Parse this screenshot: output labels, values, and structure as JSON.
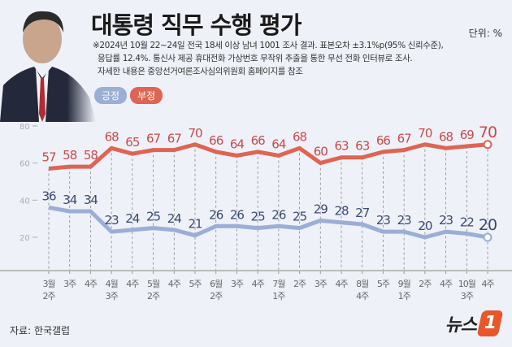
{
  "title": "대통령 직무 수행 평가",
  "unit": "단위: %",
  "notes": [
    "※2024년 10월 22~24일 전국 18세 이상 남녀 1001 조사 결과. 표본오차 ±3.1%p(95% 신뢰수준),",
    "응답률 12.4%. 통신사 제공 휴대전화 가상번호 무작위 추출을 통한 무선 전화 인터뷰로 조사.",
    "자세한 내용은 중앙선거여론조사심의위원회 홈페이지를 참조"
  ],
  "source": "자료: 한국갤럽",
  "logo": {
    "text": "뉴스",
    "mark": "1"
  },
  "colors": {
    "positive": "#9aaed6",
    "negative": "#de6553",
    "positive_label": "#3a4a6e",
    "negative_label": "#c84a4a"
  },
  "chart_data": {
    "type": "line",
    "title": "대통령 직무 수행 평가",
    "ylim": [
      10,
      85
    ],
    "yticks": [
      20,
      40,
      60,
      80
    ],
    "grid": false,
    "legend_position": "top-left",
    "categories": [
      [
        "3월",
        "2주"
      ],
      [
        "3주"
      ],
      [
        "4주"
      ],
      [
        "4월",
        "3주"
      ],
      [
        "4주"
      ],
      [
        "5월",
        "2주"
      ],
      [
        "4주"
      ],
      [
        "5주"
      ],
      [
        "6월",
        "2주"
      ],
      [
        "3주"
      ],
      [
        "4주"
      ],
      [
        "7월",
        "1주"
      ],
      [
        "2주"
      ],
      [
        "3주"
      ],
      [
        "4주"
      ],
      [
        "8월",
        "4주"
      ],
      [
        "5주"
      ],
      [
        "9월",
        "1주"
      ],
      [
        "2주"
      ],
      [
        "4주"
      ],
      [
        "10월",
        "3주"
      ],
      [
        "4주"
      ]
    ],
    "series": [
      {
        "name": "긍정",
        "values": [
          36,
          34,
          34,
          23,
          24,
          25,
          24,
          21,
          26,
          26,
          25,
          26,
          25,
          29,
          28,
          27,
          23,
          23,
          20,
          23,
          22,
          20
        ]
      },
      {
        "name": "부정",
        "values": [
          57,
          58,
          58,
          68,
          65,
          67,
          67,
          70,
          66,
          64,
          66,
          64,
          68,
          60,
          63,
          63,
          66,
          67,
          70,
          68,
          69,
          70
        ]
      }
    ]
  }
}
